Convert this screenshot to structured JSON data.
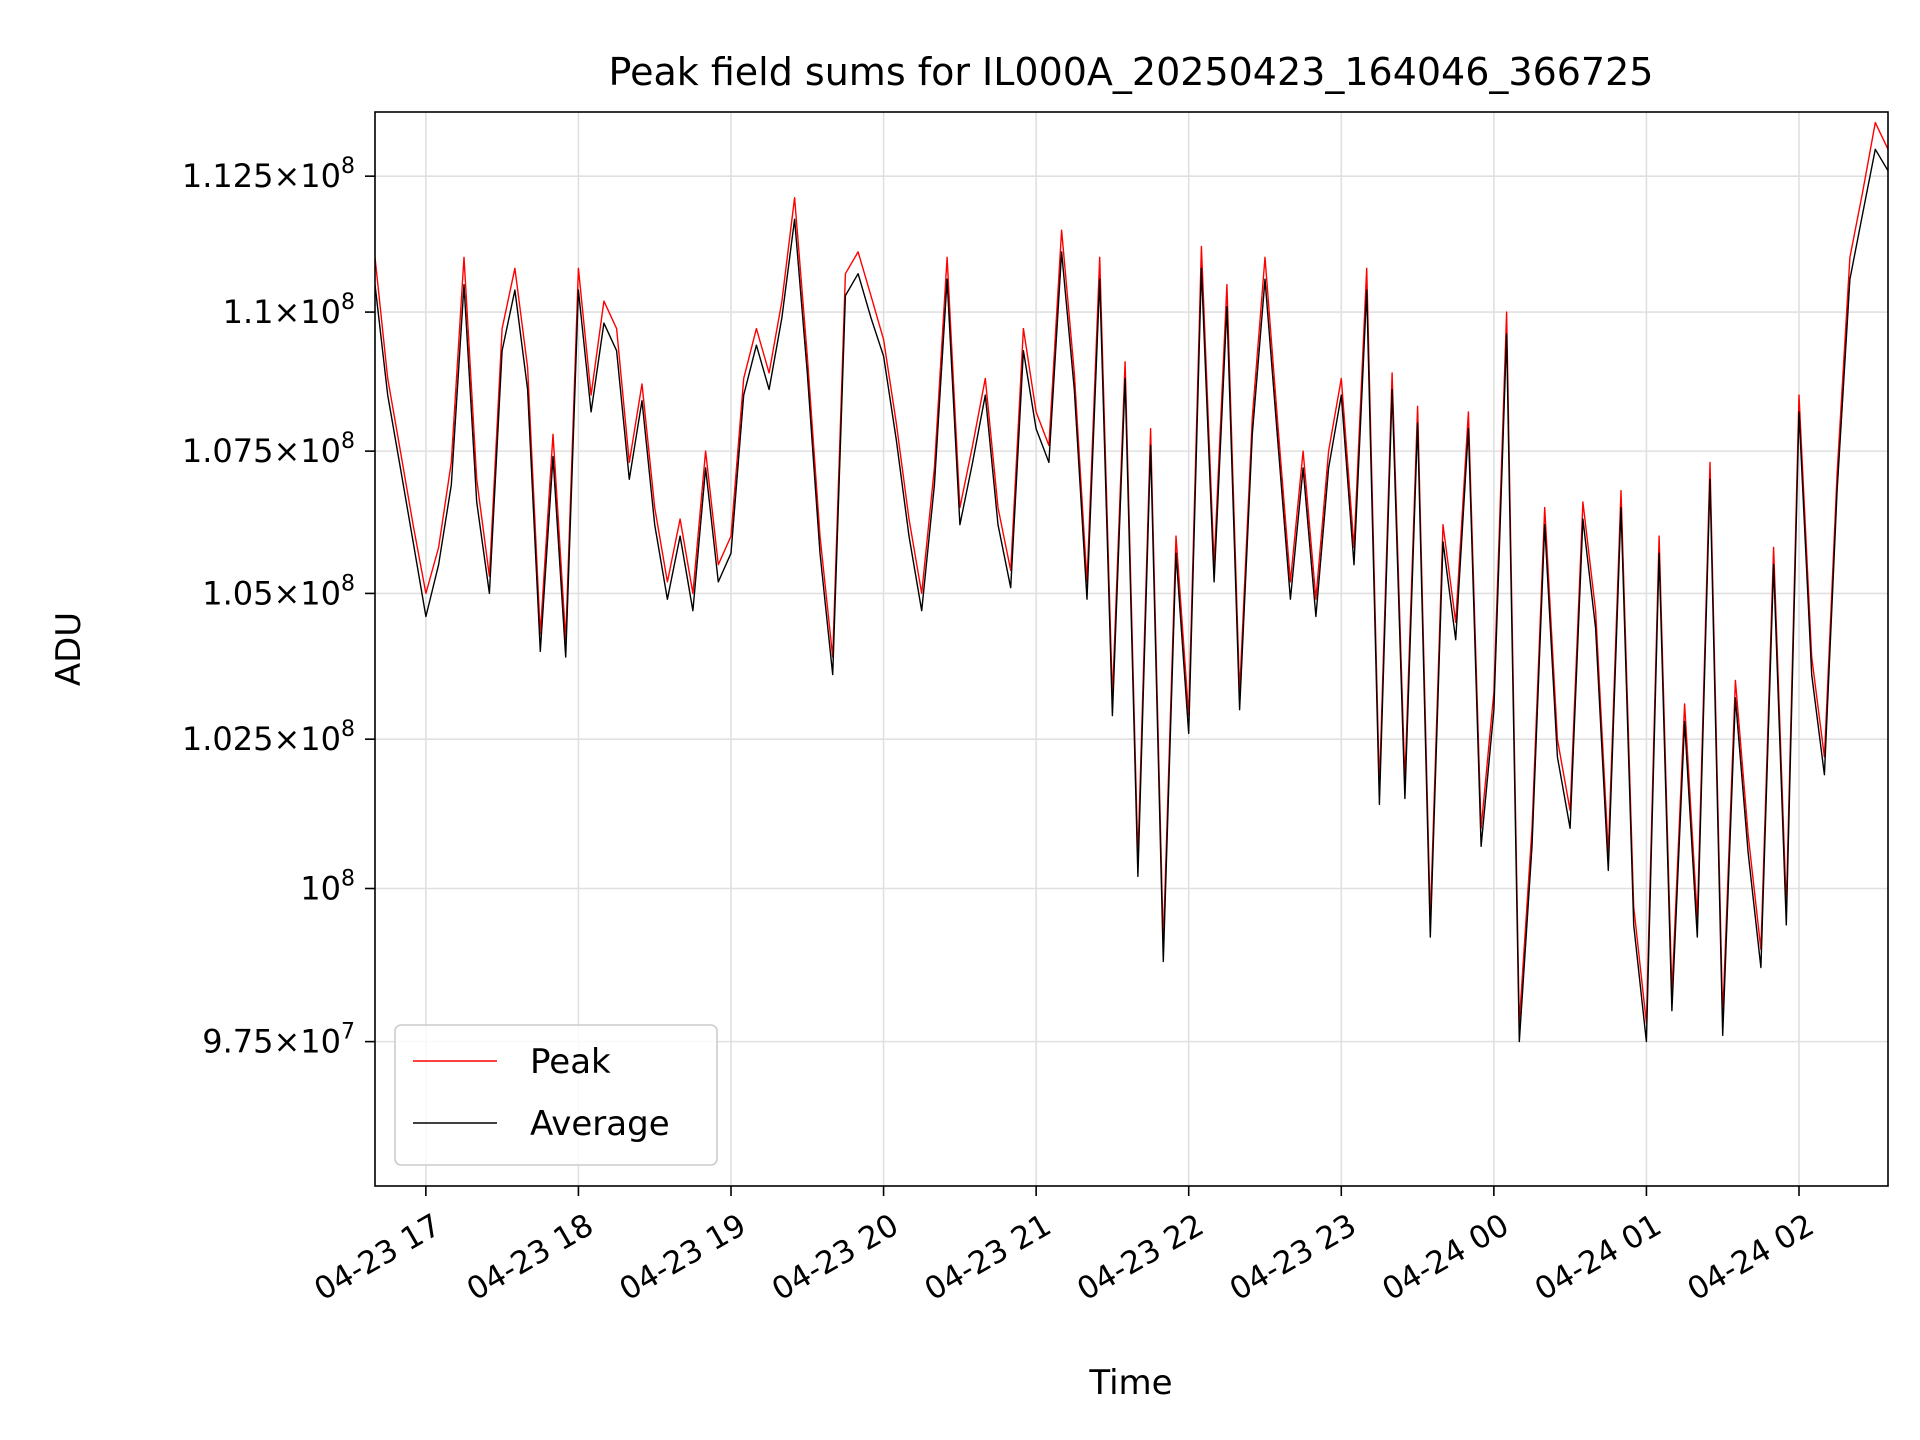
{
  "chart_data": {
    "type": "line",
    "title": "Peak field sums for IL000A_20250423_164046_366725",
    "xlabel": "Time",
    "ylabel": "ADU",
    "x_type": "datetime",
    "xlim": [
      "2025-04-23 16:40",
      "2025-04-24 02:35"
    ],
    "ylim": [
      95200000,
      113700000
    ],
    "yscale": "log",
    "grid": true,
    "legend_position": "lower-left",
    "x_ticks": [
      {
        "value": "2025-04-23 17:00",
        "label": "04-23 17"
      },
      {
        "value": "2025-04-23 18:00",
        "label": "04-23 18"
      },
      {
        "value": "2025-04-23 19:00",
        "label": "04-23 19"
      },
      {
        "value": "2025-04-23 20:00",
        "label": "04-23 20"
      },
      {
        "value": "2025-04-23 21:00",
        "label": "04-23 21"
      },
      {
        "value": "2025-04-23 22:00",
        "label": "04-23 22"
      },
      {
        "value": "2025-04-23 23:00",
        "label": "04-23 23"
      },
      {
        "value": "2025-04-24 00:00",
        "label": "04-24 00"
      },
      {
        "value": "2025-04-24 01:00",
        "label": "04-24 01"
      },
      {
        "value": "2025-04-24 02:00",
        "label": "04-24 02"
      }
    ],
    "y_ticks": [
      {
        "value": 97500000,
        "mant": "9.75",
        "exp": "7"
      },
      {
        "value": 100000000,
        "mant": "",
        "exp": "8"
      },
      {
        "value": 102500000,
        "mant": "1.025",
        "exp": "8"
      },
      {
        "value": 105000000,
        "mant": "1.05",
        "exp": "8"
      },
      {
        "value": 107500000,
        "mant": "1.075",
        "exp": "8"
      },
      {
        "value": 110000000,
        "mant": "1.1",
        "exp": "8"
      },
      {
        "value": 112500000,
        "mant": "1.125",
        "exp": "8"
      }
    ],
    "series": [
      {
        "name": "Peak",
        "color": "#ff0000",
        "x": [
          "2025-04-23 16:40",
          "2025-04-23 16:45",
          "2025-04-23 16:50",
          "2025-04-23 16:55",
          "2025-04-23 17:00",
          "2025-04-23 17:05",
          "2025-04-23 17:10",
          "2025-04-23 17:15",
          "2025-04-23 17:20",
          "2025-04-23 17:25",
          "2025-04-23 17:30",
          "2025-04-23 17:35",
          "2025-04-23 17:40",
          "2025-04-23 17:45",
          "2025-04-23 17:50",
          "2025-04-23 17:55",
          "2025-04-23 18:00",
          "2025-04-23 18:05",
          "2025-04-23 18:10",
          "2025-04-23 18:15",
          "2025-04-23 18:20",
          "2025-04-23 18:25",
          "2025-04-23 18:30",
          "2025-04-23 18:35",
          "2025-04-23 18:40",
          "2025-04-23 18:45",
          "2025-04-23 18:50",
          "2025-04-23 18:55",
          "2025-04-23 19:00",
          "2025-04-23 19:05",
          "2025-04-23 19:10",
          "2025-04-23 19:15",
          "2025-04-23 19:20",
          "2025-04-23 19:25",
          "2025-04-23 19:30",
          "2025-04-23 19:35",
          "2025-04-23 19:40",
          "2025-04-23 19:45",
          "2025-04-23 19:50",
          "2025-04-23 19:55",
          "2025-04-23 20:00",
          "2025-04-23 20:05",
          "2025-04-23 20:10",
          "2025-04-23 20:15",
          "2025-04-23 20:20",
          "2025-04-23 20:25",
          "2025-04-23 20:30",
          "2025-04-23 20:35",
          "2025-04-23 20:40",
          "2025-04-23 20:45",
          "2025-04-23 20:50",
          "2025-04-23 20:55",
          "2025-04-23 21:00",
          "2025-04-23 21:05",
          "2025-04-23 21:10",
          "2025-04-23 21:15",
          "2025-04-23 21:20",
          "2025-04-23 21:25",
          "2025-04-23 21:30",
          "2025-04-23 21:35",
          "2025-04-23 21:40",
          "2025-04-23 21:45",
          "2025-04-23 21:50",
          "2025-04-23 21:55",
          "2025-04-23 22:00",
          "2025-04-23 22:05",
          "2025-04-23 22:10",
          "2025-04-23 22:15",
          "2025-04-23 22:20",
          "2025-04-23 22:25",
          "2025-04-23 22:30",
          "2025-04-23 22:35",
          "2025-04-23 22:40",
          "2025-04-23 22:45",
          "2025-04-23 22:50",
          "2025-04-23 22:55",
          "2025-04-23 23:00",
          "2025-04-23 23:05",
          "2025-04-23 23:10",
          "2025-04-23 23:15",
          "2025-04-23 23:20",
          "2025-04-23 23:25",
          "2025-04-23 23:30",
          "2025-04-23 23:35",
          "2025-04-23 23:40",
          "2025-04-23 23:45",
          "2025-04-23 23:50",
          "2025-04-23 23:55",
          "2025-04-24 00:00",
          "2025-04-24 00:05",
          "2025-04-24 00:10",
          "2025-04-24 00:15",
          "2025-04-24 00:20",
          "2025-04-24 00:25",
          "2025-04-24 00:30",
          "2025-04-24 00:35",
          "2025-04-24 00:40",
          "2025-04-24 00:45",
          "2025-04-24 00:50",
          "2025-04-24 00:55",
          "2025-04-24 01:00",
          "2025-04-24 01:05",
          "2025-04-24 01:10",
          "2025-04-24 01:15",
          "2025-04-24 01:20",
          "2025-04-24 01:25",
          "2025-04-24 01:30",
          "2025-04-24 01:35",
          "2025-04-24 01:40",
          "2025-04-24 01:45",
          "2025-04-24 01:50",
          "2025-04-24 01:55",
          "2025-04-24 02:00",
          "2025-04-24 02:05",
          "2025-04-24 02:10",
          "2025-04-24 02:15",
          "2025-04-24 02:20",
          "2025-04-24 02:25",
          "2025-04-24 02:30",
          "2025-04-24 02:35"
        ],
        "y": [
          111000000,
          108800000,
          107500000,
          106200000,
          105000000,
          105800000,
          107300000,
          111000000,
          107000000,
          105300000,
          109700000,
          110800000,
          109000000,
          104300000,
          107800000,
          104200000,
          110800000,
          108500000,
          110200000,
          109700000,
          107300000,
          108700000,
          106500000,
          105200000,
          106300000,
          105000000,
          107500000,
          105500000,
          106000000,
          108800000,
          109700000,
          108900000,
          110200000,
          112100000,
          109200000,
          106000000,
          103900000,
          110700000,
          111100000,
          110300000,
          109500000,
          108000000,
          106300000,
          105000000,
          107200000,
          111000000,
          106500000,
          107600000,
          108800000,
          106500000,
          105400000,
          109700000,
          108200000,
          107600000,
          111500000,
          108900000,
          105200000,
          111000000,
          103200000,
          109100000,
          100500000,
          107900000,
          99100000,
          106000000,
          102900000,
          111200000,
          105500000,
          110500000,
          103300000,
          108100000,
          111000000,
          108000000,
          105200000,
          107500000,
          104900000,
          107500000,
          108800000,
          105800000,
          110800000,
          101700000,
          108900000,
          101800000,
          108300000,
          99500000,
          106200000,
          104500000,
          108200000,
          101000000,
          103300000,
          110000000,
          97800000,
          101000000,
          106500000,
          102500000,
          101300000,
          106600000,
          104700000,
          100600000,
          106800000,
          99700000,
          97800000,
          106000000,
          98300000,
          103100000,
          99500000,
          107300000,
          97900000,
          103500000,
          100900000,
          99000000,
          105800000,
          99700000,
          108500000,
          103900000,
          102200000,
          107100000,
          111000000,
          112200000,
          113500000,
          113000000
        ],
        "values_note": ""
      },
      {
        "name": "Average",
        "color": "#000000",
        "x": [
          "2025-04-23 16:40",
          "2025-04-23 16:45",
          "2025-04-23 16:50",
          "2025-04-23 16:55",
          "2025-04-23 17:00",
          "2025-04-23 17:05",
          "2025-04-23 17:10",
          "2025-04-23 17:15",
          "2025-04-23 17:20",
          "2025-04-23 17:25",
          "2025-04-23 17:30",
          "2025-04-23 17:35",
          "2025-04-23 17:40",
          "2025-04-23 17:45",
          "2025-04-23 17:50",
          "2025-04-23 17:55",
          "2025-04-23 18:00",
          "2025-04-23 18:05",
          "2025-04-23 18:10",
          "2025-04-23 18:15",
          "2025-04-23 18:20",
          "2025-04-23 18:25",
          "2025-04-23 18:30",
          "2025-04-23 18:35",
          "2025-04-23 18:40",
          "2025-04-23 18:45",
          "2025-04-23 18:50",
          "2025-04-23 18:55",
          "2025-04-23 19:00",
          "2025-04-23 19:05",
          "2025-04-23 19:10",
          "2025-04-23 19:15",
          "2025-04-23 19:20",
          "2025-04-23 19:25",
          "2025-04-23 19:30",
          "2025-04-23 19:35",
          "2025-04-23 19:40",
          "2025-04-23 19:45",
          "2025-04-23 19:50",
          "2025-04-23 19:55",
          "2025-04-23 20:00",
          "2025-04-23 20:05",
          "2025-04-23 20:10",
          "2025-04-23 20:15",
          "2025-04-23 20:20",
          "2025-04-23 20:25",
          "2025-04-23 20:30",
          "2025-04-23 20:35",
          "2025-04-23 20:40",
          "2025-04-23 20:45",
          "2025-04-23 20:50",
          "2025-04-23 20:55",
          "2025-04-23 21:00",
          "2025-04-23 21:05",
          "2025-04-23 21:10",
          "2025-04-23 21:15",
          "2025-04-23 21:20",
          "2025-04-23 21:25",
          "2025-04-23 21:30",
          "2025-04-23 21:35",
          "2025-04-23 21:40",
          "2025-04-23 21:45",
          "2025-04-23 21:50",
          "2025-04-23 21:55",
          "2025-04-23 22:00",
          "2025-04-23 22:05",
          "2025-04-23 22:10",
          "2025-04-23 22:15",
          "2025-04-23 22:20",
          "2025-04-23 22:25",
          "2025-04-23 22:30",
          "2025-04-23 22:35",
          "2025-04-23 22:40",
          "2025-04-23 22:45",
          "2025-04-23 22:50",
          "2025-04-23 22:55",
          "2025-04-23 23:00",
          "2025-04-23 23:05",
          "2025-04-23 23:10",
          "2025-04-23 23:15",
          "2025-04-23 23:20",
          "2025-04-23 23:25",
          "2025-04-23 23:30",
          "2025-04-23 23:35",
          "2025-04-23 23:40",
          "2025-04-23 23:45",
          "2025-04-23 23:50",
          "2025-04-23 23:55",
          "2025-04-24 00:00",
          "2025-04-24 00:05",
          "2025-04-24 00:10",
          "2025-04-24 00:15",
          "2025-04-24 00:20",
          "2025-04-24 00:25",
          "2025-04-24 00:30",
          "2025-04-24 00:35",
          "2025-04-24 00:40",
          "2025-04-24 00:45",
          "2025-04-24 00:50",
          "2025-04-24 00:55",
          "2025-04-24 01:00",
          "2025-04-24 01:05",
          "2025-04-24 01:10",
          "2025-04-24 01:15",
          "2025-04-24 01:20",
          "2025-04-24 01:25",
          "2025-04-24 01:30",
          "2025-04-24 01:35",
          "2025-04-24 01:40",
          "2025-04-24 01:45",
          "2025-04-24 01:50",
          "2025-04-24 01:55",
          "2025-04-24 02:00",
          "2025-04-24 02:05",
          "2025-04-24 02:10",
          "2025-04-24 02:15",
          "2025-04-24 02:20",
          "2025-04-24 02:25",
          "2025-04-24 02:30",
          "2025-04-24 02:35"
        ],
        "y": [
          110500000,
          108500000,
          107200000,
          105900000,
          104600000,
          105500000,
          106900000,
          110500000,
          106600000,
          105000000,
          109300000,
          110400000,
          108600000,
          104000000,
          107400000,
          103900000,
          110400000,
          108200000,
          109800000,
          109300000,
          107000000,
          108400000,
          106200000,
          104900000,
          106000000,
          104700000,
          107200000,
          105200000,
          105700000,
          108500000,
          109400000,
          108600000,
          109900000,
          111700000,
          108900000,
          105700000,
          103600000,
          110300000,
          110700000,
          109900000,
          109200000,
          107700000,
          106000000,
          104700000,
          106900000,
          110600000,
          106200000,
          107300000,
          108500000,
          106200000,
          105100000,
          109300000,
          107900000,
          107300000,
          111100000,
          108600000,
          104900000,
          110600000,
          102900000,
          108800000,
          100200000,
          107600000,
          98800000,
          105700000,
          102600000,
          110800000,
          105200000,
          110100000,
          103000000,
          107800000,
          110600000,
          107700000,
          104900000,
          107200000,
          104600000,
          107200000,
          108500000,
          105500000,
          110400000,
          101400000,
          108600000,
          101500000,
          108000000,
          99200000,
          105900000,
          104200000,
          107900000,
          100700000,
          103000000,
          109600000,
          97500000,
          100700000,
          106200000,
          102200000,
          101000000,
          106300000,
          104400000,
          100300000,
          106500000,
          99400000,
          97500000,
          105700000,
          98000000,
          102800000,
          99200000,
          107000000,
          97600000,
          103200000,
          100600000,
          98700000,
          105500000,
          99400000,
          108200000,
          103600000,
          101900000,
          106800000,
          110600000,
          111800000,
          113000000,
          112600000
        ]
      }
    ]
  }
}
